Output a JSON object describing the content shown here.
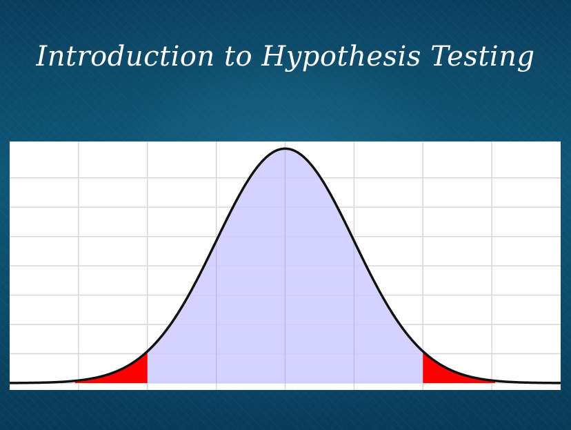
{
  "title": "Introduction to Hypothesis Testing",
  "colors": {
    "background": "#0d4f6e",
    "panel": "#ffffff",
    "curve": "#111111",
    "acceptance_region": "#cccbff",
    "rejection_region": "#ff0000",
    "grid": "#d6d6d6"
  },
  "chart_data": {
    "type": "area",
    "distribution": "normal",
    "mean": 0,
    "sd": 1,
    "xlim": [
      -4,
      4
    ],
    "ylim": [
      0,
      0.4
    ],
    "critical_values": [
      -2,
      2
    ],
    "acceptance_region": [
      -2,
      2
    ],
    "rejection_regions": [
      [
        -4,
        -2
      ],
      [
        2,
        4
      ]
    ],
    "x_gridlines": [
      -3,
      -2,
      -1,
      0,
      1,
      2,
      3
    ],
    "y_gridlines": [
      0.05,
      0.1,
      0.15,
      0.2,
      0.25,
      0.3,
      0.35
    ],
    "grid": true,
    "title": "",
    "xlabel": "",
    "ylabel": ""
  }
}
